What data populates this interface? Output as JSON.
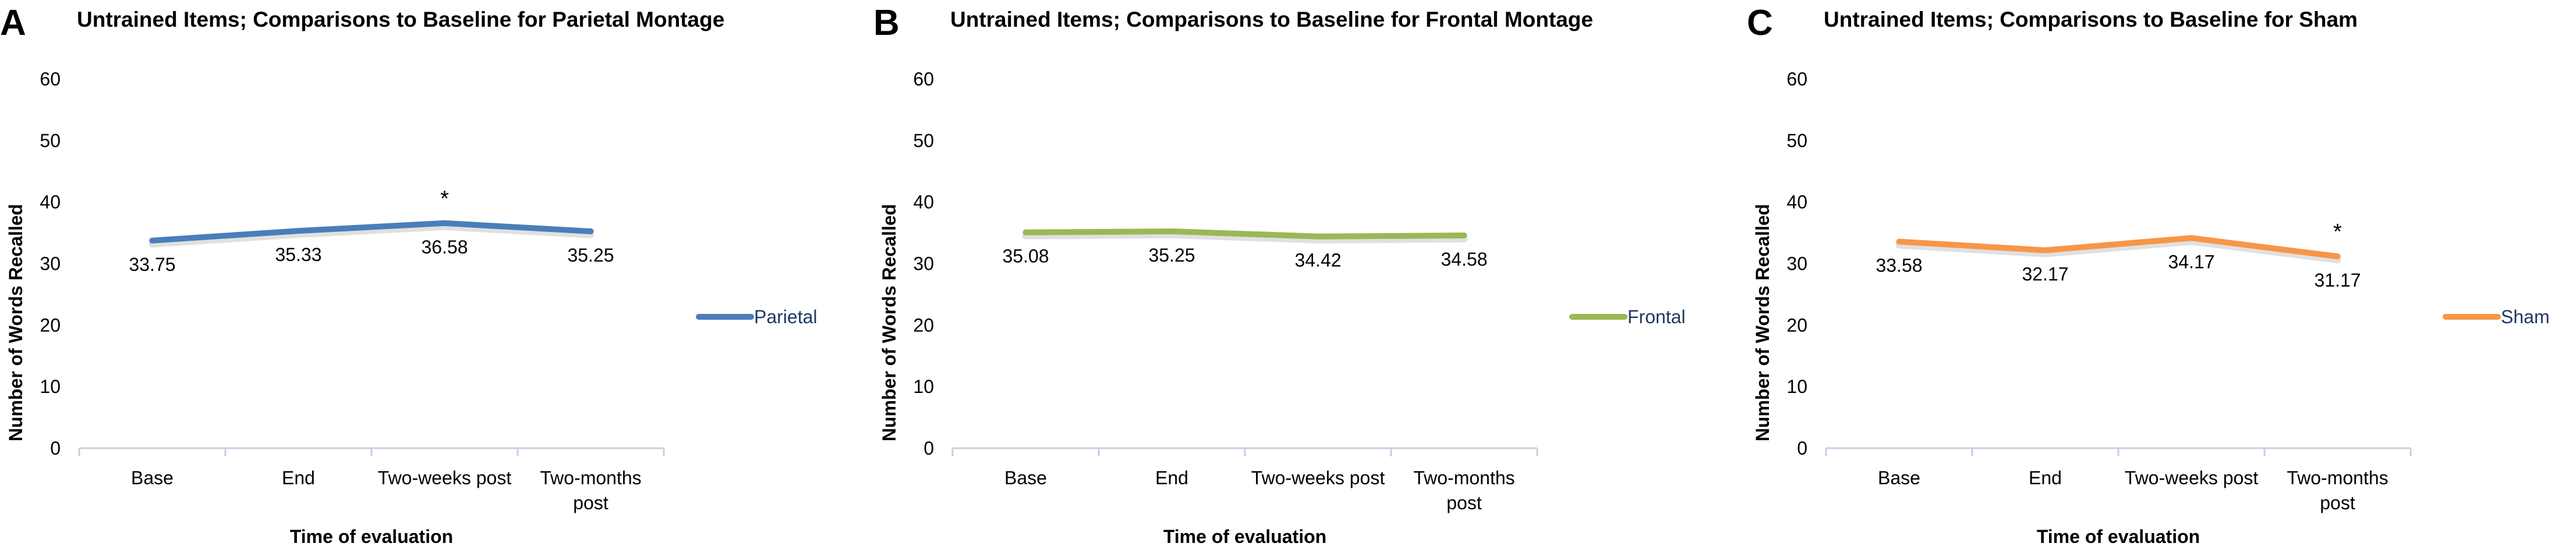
{
  "chart_data": [
    {
      "type": "line",
      "panel_letter": "A",
      "title": "Untrained Items; Comparisons to Baseline for Parietal Montage",
      "xlabel": "Time of evaluation",
      "ylabel": "Number of  Words Recalled",
      "categories": [
        [
          "Base"
        ],
        [
          "End"
        ],
        [
          "Two-weeks post"
        ],
        [
          "Two-months",
          "post"
        ]
      ],
      "y_ticks": [
        "0",
        "10",
        "20",
        "30",
        "40",
        "50",
        "60"
      ],
      "ylim": [
        0,
        60
      ],
      "grid": false,
      "legend_position": "right",
      "series": [
        {
          "name": "Parietal",
          "color": "#4a7ebb",
          "values": [
            33.75,
            35.33,
            36.58,
            35.25
          ],
          "labels": [
            "33.75",
            "35.33",
            "36.58",
            "35.25"
          ]
        }
      ],
      "annotations": [
        {
          "category_index": 2,
          "text": "*"
        }
      ]
    },
    {
      "type": "line",
      "panel_letter": "B",
      "title": "Untrained Items; Comparisons to Baseline for Frontal Montage",
      "xlabel": "Time of evaluation",
      "ylabel": "Number of  Words Recalled",
      "categories": [
        [
          "Base"
        ],
        [
          "End"
        ],
        [
          "Two-weeks post"
        ],
        [
          "Two-months",
          "post"
        ]
      ],
      "y_ticks": [
        "0",
        "10",
        "20",
        "30",
        "40",
        "50",
        "60"
      ],
      "ylim": [
        0,
        60
      ],
      "grid": false,
      "legend_position": "right",
      "series": [
        {
          "name": "Frontal",
          "color": "#98b954",
          "values": [
            35.08,
            35.25,
            34.42,
            34.58
          ],
          "labels": [
            "35.08",
            "35.25",
            "34.42",
            "34.58"
          ]
        }
      ],
      "annotations": []
    },
    {
      "type": "line",
      "panel_letter": "C",
      "title": "Untrained Items; Comparisons to Baseline for Sham",
      "xlabel": "Time of evaluation",
      "ylabel": "Number of  Words Recalled",
      "categories": [
        [
          "Base"
        ],
        [
          "End"
        ],
        [
          "Two-weeks post"
        ],
        [
          "Two-months",
          "post"
        ]
      ],
      "y_ticks": [
        "0",
        "10",
        "20",
        "30",
        "40",
        "50",
        "60"
      ],
      "ylim": [
        0,
        60
      ],
      "grid": false,
      "legend_position": "right",
      "series": [
        {
          "name": "Sham",
          "color": "#f79646",
          "values": [
            33.58,
            32.17,
            34.17,
            31.17
          ],
          "labels": [
            "33.58",
            "32.17",
            "34.17",
            "31.17"
          ]
        }
      ],
      "annotations": [
        {
          "category_index": 3,
          "text": "*"
        }
      ]
    }
  ]
}
